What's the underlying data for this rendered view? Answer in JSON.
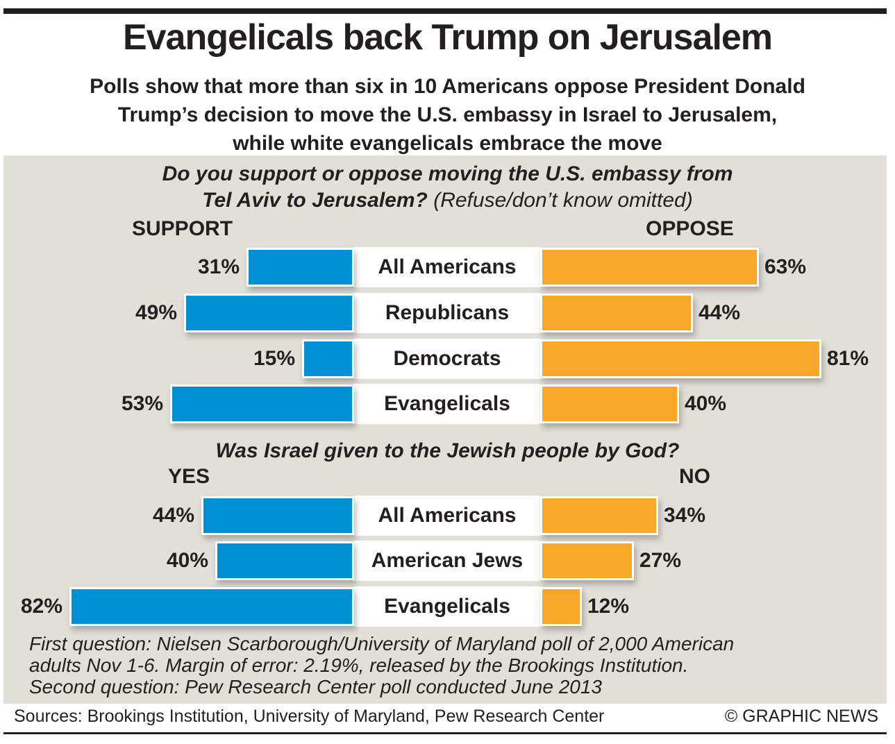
{
  "header": {
    "title": "Evangelicals back Trump on Jerusalem",
    "subtitle_lines": [
      "Polls show that more than six in 10 Americans oppose President Donald",
      "Trump’s decision to move the U.S. embassy in Israel to Jerusalem,",
      "while white evangelicals embrace the move"
    ]
  },
  "colors": {
    "support": "#0090d6",
    "oppose": "#f9a728",
    "panel": "#e1e0d8"
  },
  "chart_data": [
    {
      "type": "bar",
      "title_lines": [
        "Do you support or oppose moving the U.S. embassy from",
        "Tel Aviv to Jerusalem?"
      ],
      "title_note": "(Refuse/don’t know omitted)",
      "left_label": "SUPPORT",
      "right_label": "OPPOSE",
      "categories": [
        "All Americans",
        "Republicans",
        "Democrats",
        "Evangelicals"
      ],
      "series": [
        {
          "name": "Support",
          "values": [
            31,
            49,
            15,
            53
          ],
          "labels": [
            "31%",
            "49%",
            "15%",
            "53%"
          ]
        },
        {
          "name": "Oppose",
          "values": [
            63,
            44,
            81,
            40
          ],
          "labels": [
            "63%",
            "44%",
            "81%",
            "40%"
          ]
        }
      ],
      "unit": "%"
    },
    {
      "type": "bar",
      "title_lines": [
        "Was Israel given to the Jewish people by God?"
      ],
      "left_label": "YES",
      "right_label": "NO",
      "categories": [
        "All Americans",
        "American Jews",
        "Evangelicals"
      ],
      "series": [
        {
          "name": "Yes",
          "values": [
            44,
            40,
            82
          ],
          "labels": [
            "44%",
            "40%",
            "82%"
          ]
        },
        {
          "name": "No",
          "values": [
            34,
            27,
            12
          ],
          "labels": [
            "34%",
            "27%",
            "12%"
          ]
        }
      ],
      "unit": "%"
    }
  ],
  "footer": {
    "notes": [
      "First question: Nielsen Scarborough/University of Maryland poll of 2,000 American",
      "adults Nov 1-6. Margin of error: 2.19%, released by the Brookings Institution.",
      "Second question: Pew Research Center poll conducted June 2013"
    ],
    "sources": "Sources: Brookings Institution, University of Maryland, Pew Research Center",
    "copyright": "© GRAPHIC NEWS"
  }
}
